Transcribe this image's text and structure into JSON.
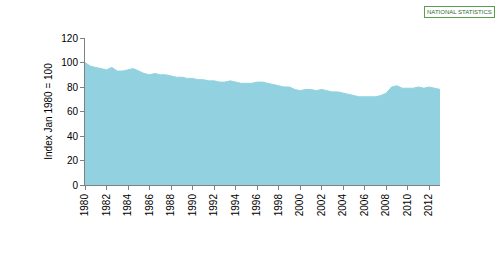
{
  "chart_data": {
    "type": "area",
    "y_label": "Index Jan 1980 = 100",
    "annotations": [
      {
        "text": "NATIONAL STATISTICS"
      }
    ],
    "color": "#92d2e0",
    "grid": false,
    "x": [
      1980,
      1980.5,
      1981,
      1981.5,
      1982,
      1982.5,
      1983,
      1983.5,
      1984,
      1984.5,
      1985,
      1985.5,
      1986,
      1986.5,
      1987,
      1987.5,
      1988,
      1988.5,
      1989,
      1989.5,
      1990,
      1990.5,
      1991,
      1991.5,
      1992,
      1992.5,
      1993,
      1993.5,
      1994,
      1994.5,
      1995,
      1995.5,
      1996,
      1996.5,
      1997,
      1997.5,
      1998,
      1998.5,
      1999,
      1999.5,
      2000,
      2000.5,
      2001,
      2001.5,
      2002,
      2002.5,
      2003,
      2003.5,
      2004,
      2004.5,
      2005,
      2005.5,
      2006,
      2006.5,
      2007,
      2007.5,
      2008,
      2008.5,
      2009,
      2009.5,
      2010,
      2010.5,
      2011,
      2011.5,
      2012,
      2012.5,
      2013
    ],
    "values": [
      100,
      97,
      96,
      95,
      94,
      96,
      93,
      93,
      94,
      95,
      93,
      91,
      90,
      91,
      90,
      90,
      89,
      88,
      88,
      87,
      87,
      86,
      86,
      85,
      85,
      84,
      84,
      85,
      84,
      83,
      83,
      83,
      84,
      84,
      83,
      82,
      81,
      80,
      80,
      78,
      77,
      78,
      78,
      77,
      78,
      77,
      76,
      76,
      75,
      74,
      73,
      72,
      72,
      72,
      72,
      73,
      75,
      80,
      81,
      79,
      79,
      79,
      80,
      79,
      80,
      79,
      78
    ],
    "xlim": [
      1980,
      2013
    ],
    "xticks": [
      1980,
      1982,
      1984,
      1986,
      1988,
      1990,
      1992,
      1994,
      1996,
      1998,
      2000,
      2002,
      2004,
      2006,
      2008,
      2010,
      2012
    ],
    "ylim": [
      0,
      120
    ],
    "yticks": [
      0,
      20,
      40,
      60,
      80,
      100,
      120
    ]
  }
}
